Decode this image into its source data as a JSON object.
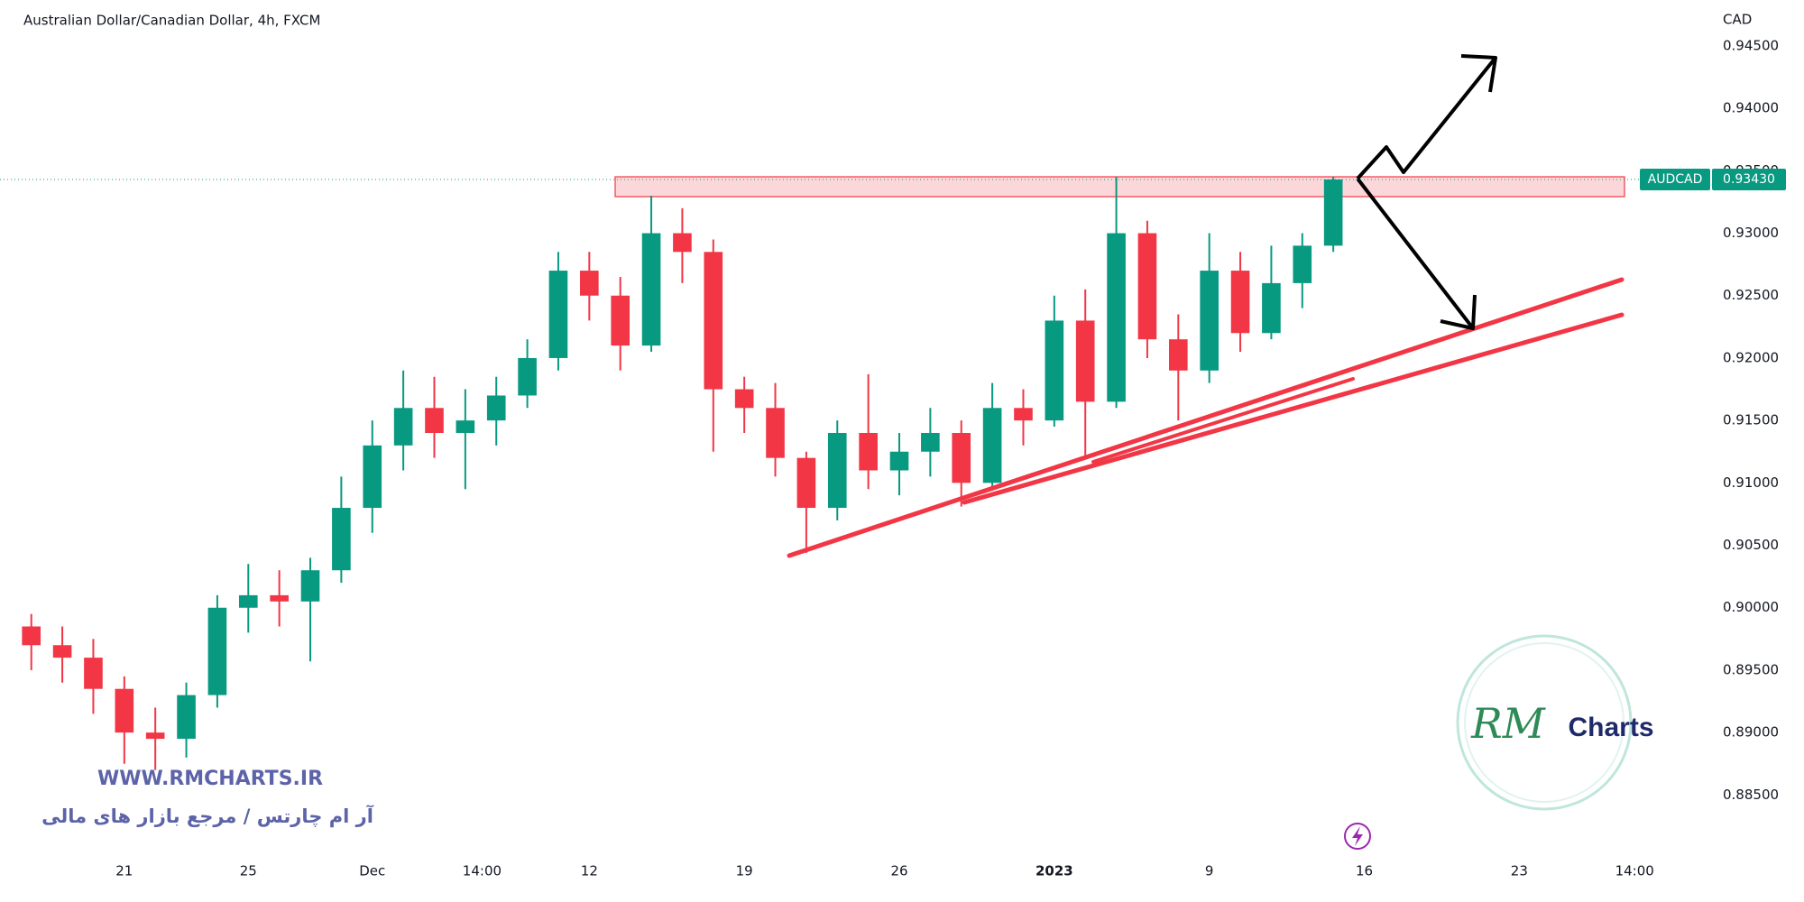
{
  "chart_data": {
    "type": "candlestick",
    "title": "Australian Dollar/Canadian Dollar, 4h, FXCM",
    "currency": "CAD",
    "symbol": "AUDCAD",
    "last_price": {
      "value": 0.9343,
      "label": "0.93430"
    },
    "up_color": "#089981",
    "down_color": "#f23645",
    "watermark": {
      "site": "WWW.RMCHARTS.IR",
      "tagline": "آر ام چارتس / مرجع بازار های مالی",
      "logo_script": "RM",
      "logo_word": "Charts"
    },
    "xlim": [
      -4.01,
      51.1
    ],
    "ylim": [
      0.88004,
      0.94868
    ],
    "xticks": [
      {
        "value": 0,
        "label": "21"
      },
      {
        "value": 4,
        "label": "25"
      },
      {
        "value": 8,
        "label": "Dec"
      },
      {
        "value": 11.54,
        "label": "14:00"
      },
      {
        "value": 15,
        "label": "12"
      },
      {
        "value": 20,
        "label": "19"
      },
      {
        "value": 25,
        "label": "26"
      },
      {
        "value": 30,
        "label": "2023"
      },
      {
        "value": 35,
        "label": "9"
      },
      {
        "value": 40,
        "label": "16"
      },
      {
        "value": 45,
        "label": "23"
      },
      {
        "value": 48.72,
        "label": "14:00"
      }
    ],
    "yticks": [
      {
        "value": 0.885,
        "label": "0.88500"
      },
      {
        "value": 0.89,
        "label": "0.89000"
      },
      {
        "value": 0.895,
        "label": "0.89500"
      },
      {
        "value": 0.9,
        "label": "0.90000"
      },
      {
        "value": 0.905,
        "label": "0.90500"
      },
      {
        "value": 0.91,
        "label": "0.91000"
      },
      {
        "value": 0.915,
        "label": "0.91500"
      },
      {
        "value": 0.92,
        "label": "0.92000"
      },
      {
        "value": 0.925,
        "label": "0.92500"
      },
      {
        "value": 0.93,
        "label": "0.93000"
      },
      {
        "value": 0.935,
        "label": "0.93500"
      },
      {
        "value": 0.94,
        "label": "0.94000"
      },
      {
        "value": 0.945,
        "label": "0.94500"
      }
    ],
    "candles": {
      "x": [
        -3,
        -2,
        -1,
        0,
        1,
        2,
        3,
        4,
        5,
        6,
        7,
        8,
        9,
        10,
        11,
        12,
        13,
        14,
        15,
        16,
        17,
        18,
        19,
        20,
        21,
        22,
        23,
        24,
        25,
        26,
        27,
        28,
        29,
        30,
        31,
        32,
        33,
        34,
        35,
        36,
        37,
        38,
        39
      ],
      "open": [
        0.8985,
        0.897,
        0.896,
        0.8935,
        0.89,
        0.8895,
        0.893,
        0.9,
        0.901,
        0.9005,
        0.903,
        0.908,
        0.913,
        0.916,
        0.914,
        0.915,
        0.917,
        0.92,
        0.927,
        0.925,
        0.921,
        0.93,
        0.9285,
        0.9175,
        0.916,
        0.912,
        0.908,
        0.914,
        0.911,
        0.9125,
        0.914,
        0.91,
        0.916,
        0.915,
        0.923,
        0.9165,
        0.93,
        0.9215,
        0.919,
        0.927,
        0.922,
        0.926,
        0.929
      ],
      "high": [
        0.8995,
        0.8985,
        0.8975,
        0.8945,
        0.892,
        0.894,
        0.901,
        0.9035,
        0.903,
        0.904,
        0.9105,
        0.915,
        0.919,
        0.9185,
        0.9175,
        0.9185,
        0.9215,
        0.9285,
        0.9285,
        0.9265,
        0.933,
        0.932,
        0.9295,
        0.9185,
        0.918,
        0.9125,
        0.915,
        0.9187,
        0.914,
        0.916,
        0.915,
        0.918,
        0.9175,
        0.925,
        0.9255,
        0.9345,
        0.931,
        0.9235,
        0.93,
        0.9285,
        0.929,
        0.93,
        0.9345
      ],
      "low": [
        0.895,
        0.894,
        0.8915,
        0.8875,
        0.887,
        0.888,
        0.892,
        0.898,
        0.8985,
        0.8957,
        0.902,
        0.906,
        0.911,
        0.912,
        0.9095,
        0.913,
        0.916,
        0.919,
        0.923,
        0.919,
        0.9205,
        0.926,
        0.9125,
        0.914,
        0.9105,
        0.9044,
        0.907,
        0.9095,
        0.909,
        0.9105,
        0.9081,
        0.9095,
        0.913,
        0.9145,
        0.912,
        0.916,
        0.92,
        0.915,
        0.918,
        0.9205,
        0.9215,
        0.924,
        0.9285
      ],
      "close": [
        0.897,
        0.896,
        0.8935,
        0.89,
        0.8895,
        0.893,
        0.9,
        0.901,
        0.9005,
        0.903,
        0.908,
        0.913,
        0.916,
        0.914,
        0.915,
        0.917,
        0.92,
        0.927,
        0.925,
        0.921,
        0.93,
        0.9285,
        0.9175,
        0.916,
        0.912,
        0.908,
        0.914,
        0.911,
        0.9125,
        0.914,
        0.91,
        0.916,
        0.915,
        0.923,
        0.9165,
        0.93,
        0.9215,
        0.919,
        0.927,
        0.922,
        0.926,
        0.929,
        0.9343
      ]
    }
  }
}
